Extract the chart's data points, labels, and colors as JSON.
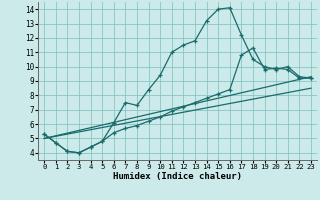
{
  "xlabel": "Humidex (Indice chaleur)",
  "bg_color": "#cceaea",
  "grid_color": "#88c4c4",
  "line_color": "#1a6b6b",
  "xlim": [
    -0.5,
    23.5
  ],
  "ylim": [
    3.5,
    14.5
  ],
  "xticks": [
    0,
    1,
    2,
    3,
    4,
    5,
    6,
    7,
    8,
    9,
    10,
    11,
    12,
    13,
    14,
    15,
    16,
    17,
    18,
    19,
    20,
    21,
    22,
    23
  ],
  "yticks": [
    4,
    5,
    6,
    7,
    8,
    9,
    10,
    11,
    12,
    13,
    14
  ],
  "line1_x": [
    0,
    1,
    2,
    3,
    4,
    5,
    6,
    7,
    8,
    9,
    10,
    11,
    12,
    13,
    14,
    15,
    16,
    17,
    18,
    19,
    20,
    21,
    22,
    23
  ],
  "line1_y": [
    5.3,
    4.7,
    4.1,
    4.0,
    4.4,
    4.8,
    6.1,
    7.5,
    7.3,
    8.4,
    9.4,
    11.0,
    11.5,
    11.8,
    13.2,
    14.0,
    14.1,
    12.2,
    10.5,
    10.0,
    9.8,
    10.0,
    9.3,
    9.2
  ],
  "line2_x": [
    0,
    23
  ],
  "line2_y": [
    5.0,
    9.3
  ],
  "line3_x": [
    0,
    23
  ],
  "line3_y": [
    5.0,
    8.5
  ],
  "line4_x": [
    0,
    1,
    2,
    3,
    4,
    5,
    6,
    7,
    8,
    9,
    10,
    11,
    12,
    13,
    14,
    15,
    16,
    17,
    18,
    19,
    20,
    21,
    22,
    23
  ],
  "line4_y": [
    5.3,
    4.7,
    4.1,
    4.0,
    4.4,
    4.8,
    5.4,
    5.7,
    5.9,
    6.2,
    6.5,
    6.9,
    7.2,
    7.5,
    7.8,
    8.1,
    8.4,
    10.8,
    11.3,
    9.8,
    9.9,
    9.8,
    9.2,
    9.2
  ]
}
